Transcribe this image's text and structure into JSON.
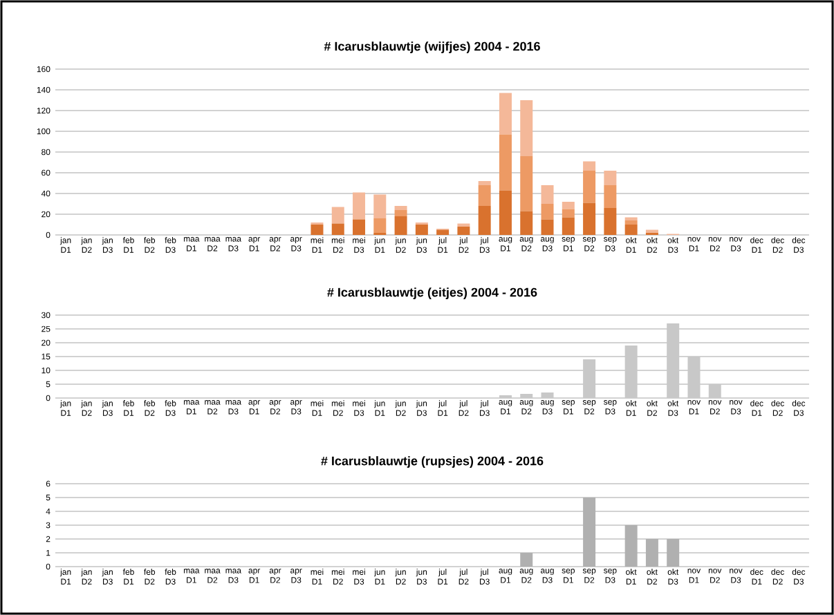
{
  "chart_data": [
    {
      "type": "bar",
      "title": "# Icarusblauwtje (wijfjes) 2004 - 2016",
      "stacked": true,
      "grid": "y",
      "categories": [
        "jan D1",
        "jan D2",
        "jan D3",
        "feb D1",
        "feb D2",
        "feb D3",
        "maa D1",
        "maa D2",
        "maa D3",
        "apr D1",
        "apr D2",
        "apr D3",
        "mei D1",
        "mei D2",
        "mei D3",
        "jun D1",
        "jun D2",
        "jun D3",
        "jul D1",
        "jul D2",
        "jul D3",
        "aug D1",
        "aug D2",
        "aug D3",
        "sep D1",
        "sep D2",
        "sep D3",
        "okt D1",
        "okt D2",
        "okt D3",
        "nov D1",
        "nov D2",
        "nov D3",
        "dec D1",
        "dec D2",
        "dec D3"
      ],
      "series": [
        {
          "color": "#d9722e",
          "values": [
            0,
            0,
            0,
            0,
            0,
            0,
            0,
            0,
            0,
            0,
            0,
            0,
            10,
            11,
            15,
            2,
            18,
            10,
            5,
            8,
            28,
            43,
            23,
            15,
            17,
            31,
            26,
            10,
            2,
            0,
            0,
            0,
            0,
            0,
            0,
            0
          ]
        },
        {
          "color": "#ed9a64",
          "values": [
            0,
            0,
            0,
            0,
            0,
            0,
            0,
            0,
            0,
            0,
            0,
            0,
            0,
            0,
            0,
            14,
            6,
            0,
            0,
            0,
            20,
            54,
            53,
            15,
            8,
            31,
            22,
            4,
            0,
            0,
            0,
            0,
            0,
            0,
            0,
            0
          ]
        },
        {
          "color": "#f4b899",
          "values": [
            0,
            0,
            0,
            0,
            0,
            0,
            0,
            0,
            0,
            0,
            0,
            0,
            2,
            16,
            26,
            23,
            4,
            2,
            1,
            3,
            4,
            40,
            54,
            18,
            7,
            9,
            14,
            3,
            3,
            1,
            0,
            0,
            0,
            0,
            0,
            0
          ]
        }
      ],
      "ylim": [
        0,
        160
      ],
      "yticks": [
        0,
        20,
        40,
        60,
        80,
        100,
        120,
        140,
        160
      ]
    },
    {
      "type": "bar",
      "title": "# Icarusblauwtje (eitjes) 2004 - 2016",
      "grid": "y",
      "categories": [
        "jan D1",
        "jan D2",
        "jan D3",
        "feb D1",
        "feb D2",
        "feb D3",
        "maa D1",
        "maa D2",
        "maa D3",
        "apr D1",
        "apr D2",
        "apr D3",
        "mei D1",
        "mei D2",
        "mei D3",
        "jun D1",
        "jun D2",
        "jun D3",
        "jul D1",
        "jul D2",
        "jul D3",
        "aug D1",
        "aug D2",
        "aug D3",
        "sep D1",
        "sep D2",
        "sep D3",
        "okt D1",
        "okt D2",
        "okt D3",
        "nov D1",
        "nov D2",
        "nov D3",
        "dec D1",
        "dec D2",
        "dec D3"
      ],
      "series": [
        {
          "color": "#c8c8c8",
          "values": [
            0,
            0,
            0,
            0,
            0,
            0,
            0,
            0,
            0,
            0,
            0,
            0,
            0,
            0,
            0,
            0,
            0,
            0,
            0,
            0,
            0,
            1,
            1.5,
            2,
            0,
            14,
            0,
            19,
            0,
            27,
            15,
            5,
            0,
            0,
            0,
            0
          ]
        }
      ],
      "ylim": [
        0,
        30
      ],
      "yticks": [
        0,
        5,
        10,
        15,
        20,
        25,
        30
      ]
    },
    {
      "type": "bar",
      "title": "# Icarusblauwtje (rupsjes) 2004 - 2016",
      "grid": "y",
      "categories": [
        "jan D1",
        "jan D2",
        "jan D3",
        "feb D1",
        "feb D2",
        "feb D3",
        "maa D1",
        "maa D2",
        "maa D3",
        "apr D1",
        "apr D2",
        "apr D3",
        "mei D1",
        "mei D2",
        "mei D3",
        "jun D1",
        "jun D2",
        "jun D3",
        "jul D1",
        "jul D2",
        "jul D3",
        "aug D1",
        "aug D2",
        "aug D3",
        "sep D1",
        "sep D2",
        "sep D3",
        "okt D1",
        "okt D2",
        "okt D3",
        "nov D1",
        "nov D2",
        "nov D3",
        "dec D1",
        "dec D2",
        "dec D3"
      ],
      "series": [
        {
          "color": "#b0b0b0",
          "values": [
            0,
            0,
            0,
            0,
            0,
            0,
            0,
            0,
            0,
            0,
            0,
            0,
            0,
            0,
            0,
            0,
            0,
            0,
            0,
            0,
            0,
            0,
            1,
            0,
            0,
            5,
            0,
            3,
            2,
            2,
            0,
            0,
            0,
            0,
            0,
            0
          ]
        }
      ],
      "ylim": [
        0,
        6
      ],
      "yticks": [
        0,
        1,
        2,
        3,
        4,
        5,
        6
      ]
    }
  ]
}
